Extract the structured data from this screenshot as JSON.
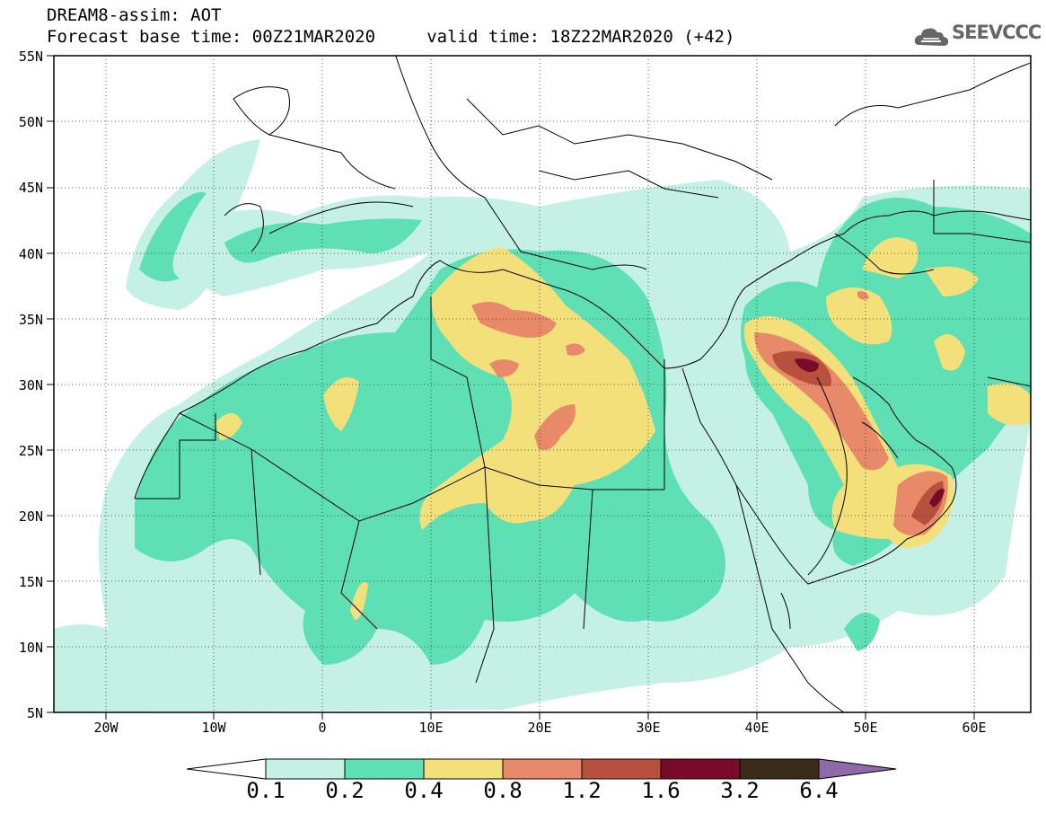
{
  "header": {
    "title_line1": "DREAM8-assim: AOT",
    "title_line2": "Forecast base time: 00Z21MAR2020     valid time: 18Z22MAR2020 (+42)"
  },
  "logo": {
    "text": "SEEVCCC",
    "icon": "cloud-icon"
  },
  "map": {
    "lat_labels": [
      "55N",
      "50N",
      "45N",
      "40N",
      "35N",
      "30N",
      "25N",
      "20N",
      "15N",
      "10N",
      "5N"
    ],
    "lon_labels": [
      "20W",
      "10W",
      "0",
      "10E",
      "20E",
      "30E",
      "40E",
      "50E",
      "60E"
    ]
  },
  "legend": {
    "labels": [
      "0.1",
      "0.2",
      "0.4",
      "0.8",
      "1.2",
      "1.6",
      "3.2",
      "6.4"
    ],
    "colors": [
      "#ffffff",
      "#c5f0e6",
      "#5ee0b4",
      "#f3e07a",
      "#e88a6a",
      "#b8503e",
      "#7a0a2a",
      "#3a2a18",
      "#8e6aa8"
    ]
  }
}
